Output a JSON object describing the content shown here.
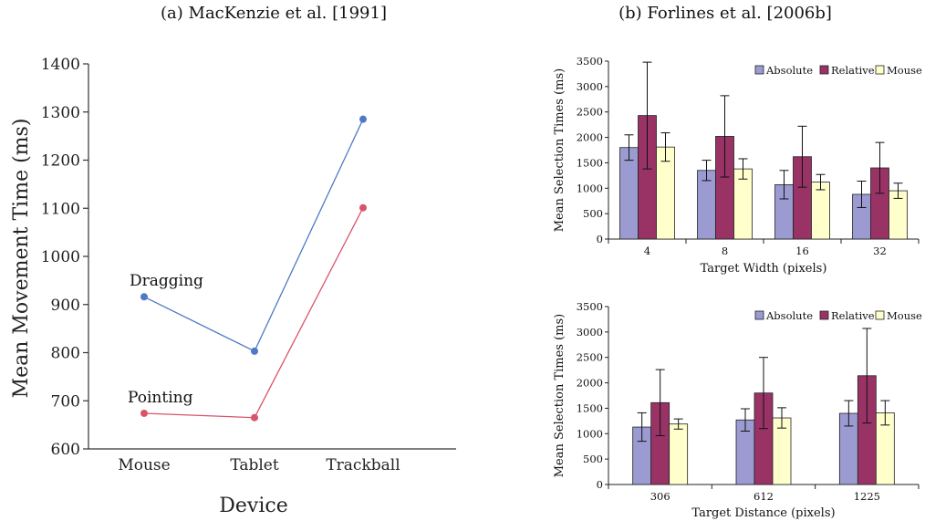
{
  "chart_data": [
    {
      "type": "line",
      "title": "(a) MacKenzie et al. [1991]",
      "xlabel": "Device",
      "ylabel": "Mean Movement Time (ms)",
      "categories": [
        "Mouse",
        "Tablet",
        "Trackball"
      ],
      "ylim": [
        600,
        1400
      ],
      "yticks": [
        600,
        700,
        800,
        900,
        1000,
        1100,
        1200,
        1300,
        1400
      ],
      "grid": false,
      "series": [
        {
          "name": "Dragging",
          "values": [
            916,
            803,
            1285
          ],
          "color": "#4f79c6"
        },
        {
          "name": "Pointing",
          "values": [
            674,
            665,
            1101
          ],
          "color": "#d9536a"
        }
      ]
    },
    {
      "type": "bar",
      "title": "(b) Forlines et al. [2006b]",
      "xlabel": "Target Width (pixels)",
      "ylabel": "Mean Selection Times (ms)",
      "categories": [
        "4",
        "8",
        "16",
        "32"
      ],
      "ylim": [
        0,
        3500
      ],
      "yticks": [
        0,
        500,
        1000,
        1500,
        2000,
        2500,
        3000,
        3500
      ],
      "legend_position": "top-right",
      "series": [
        {
          "name": "Absolute",
          "color": "#9b9bd2",
          "values": [
            1800,
            1350,
            1070,
            880
          ],
          "error": [
            250,
            200,
            280,
            260
          ]
        },
        {
          "name": "Relative",
          "color": "#993366",
          "values": [
            2430,
            2020,
            1620,
            1400
          ],
          "error": [
            1050,
            800,
            600,
            500
          ]
        },
        {
          "name": "Mouse",
          "color": "#ffffcc",
          "values": [
            1810,
            1380,
            1120,
            950
          ],
          "error": [
            280,
            200,
            150,
            150
          ]
        }
      ]
    },
    {
      "type": "bar",
      "title": "",
      "xlabel": "Target Distance (pixels)",
      "ylabel": "Mean Selection Times (ms)",
      "categories": [
        "306",
        "612",
        "1225"
      ],
      "ylim": [
        0,
        3500
      ],
      "yticks": [
        0,
        500,
        1000,
        1500,
        2000,
        2500,
        3000,
        3500
      ],
      "legend_position": "top-right",
      "series": [
        {
          "name": "Absolute",
          "color": "#9b9bd2",
          "values": [
            1130,
            1270,
            1400
          ],
          "error": [
            280,
            220,
            250
          ]
        },
        {
          "name": "Relative",
          "color": "#993366",
          "values": [
            1610,
            1800,
            2140
          ],
          "error": [
            650,
            700,
            930
          ]
        },
        {
          "name": "Mouse",
          "color": "#ffffcc",
          "values": [
            1190,
            1310,
            1410
          ],
          "error": [
            100,
            200,
            240
          ]
        }
      ]
    }
  ]
}
